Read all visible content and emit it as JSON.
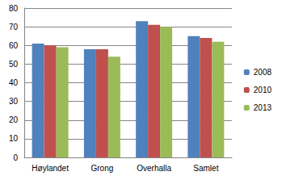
{
  "chart_data": {
    "type": "bar",
    "categories": [
      "Høylandet",
      "Grong",
      "Overhalla",
      "Samlet"
    ],
    "series": [
      {
        "name": "2008",
        "color": "#4f81bd",
        "values": [
          61,
          58,
          73,
          65
        ]
      },
      {
        "name": "2010",
        "color": "#c0504d",
        "values": [
          60,
          58,
          71,
          64
        ]
      },
      {
        "name": "2013",
        "color": "#9bbb59",
        "values": [
          59,
          54,
          70,
          62
        ]
      }
    ],
    "ylim": [
      0,
      80
    ],
    "yticks": [
      0,
      10,
      20,
      30,
      40,
      50,
      60,
      70,
      80
    ],
    "grid": true,
    "legend": "right"
  }
}
